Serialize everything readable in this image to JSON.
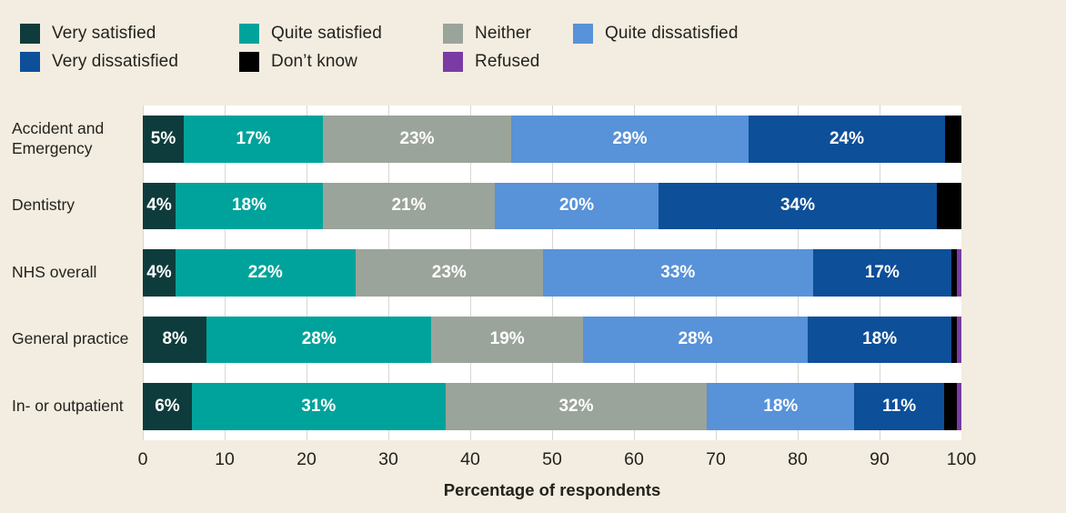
{
  "chart_data": {
    "type": "bar",
    "variant": "horizontal-stacked",
    "title": "",
    "xlabel": "Percentage of respondents",
    "xlim": [
      0,
      100
    ],
    "x_ticks": [
      0,
      10,
      20,
      30,
      40,
      50,
      60,
      70,
      80,
      90,
      100
    ],
    "grid": "vertical",
    "legend_position": "top",
    "label_threshold": 4,
    "label_suffix": "%",
    "categories": [
      "Accident and Emergency",
      "Dentistry",
      "NHS overall",
      "General practice",
      "In- or outpatient"
    ],
    "series": [
      {
        "name": "Very satisfied",
        "color": "#0e3c3c",
        "values": [
          5,
          4,
          4,
          8,
          6
        ]
      },
      {
        "name": "Quite satisfied",
        "color": "#00a39b",
        "values": [
          17,
          18,
          22,
          28,
          31
        ]
      },
      {
        "name": "Neither",
        "color": "#9ba49a",
        "values": [
          23,
          21,
          23,
          19,
          32
        ]
      },
      {
        "name": "Quite dissatisfied",
        "color": "#5892d8",
        "values": [
          29,
          20,
          33,
          28,
          18
        ]
      },
      {
        "name": "Very dissatisfied",
        "color": "#0d4f99",
        "values": [
          24,
          34,
          17,
          18,
          11
        ]
      },
      {
        "name": "Don’t know",
        "color": "#000000",
        "values": [
          2,
          3,
          0.6,
          0.6,
          1.6
        ]
      },
      {
        "name": "Refused",
        "color": "#7b3ba4",
        "values": [
          0,
          0,
          0.6,
          0.6,
          0.5
        ]
      }
    ]
  },
  "colors": {
    "background": "#f2ede0",
    "plot_background": "#ffffff",
    "gridline": "#d8d7d0",
    "text": "#24221e",
    "bar_label": "#ffffff"
  }
}
